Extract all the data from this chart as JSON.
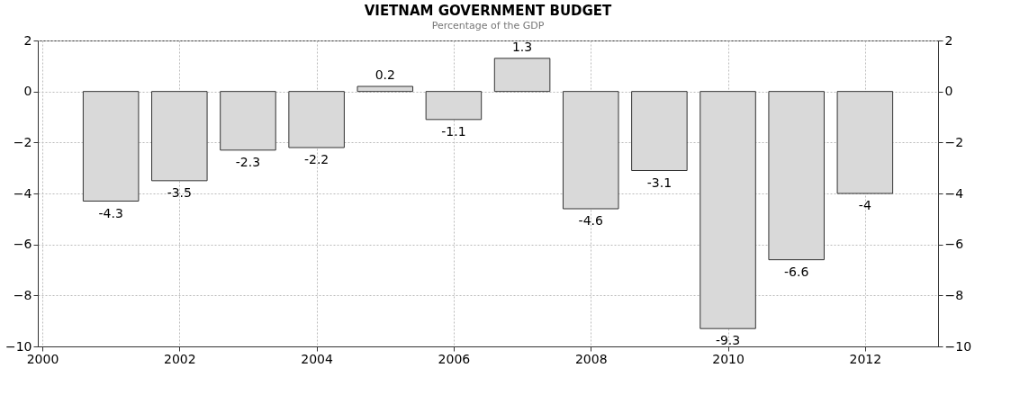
{
  "chart_data": {
    "type": "bar",
    "title": "VIETNAM GOVERNMENT BUDGET",
    "subtitle": "Percentage of the GDP",
    "x": [
      2001,
      2002,
      2003,
      2004,
      2005,
      2006,
      2007,
      2008,
      2009,
      2010,
      2011,
      2012
    ],
    "values": [
      -4.3,
      -3.5,
      -2.3,
      -2.2,
      0.2,
      -1.1,
      1.3,
      -4.6,
      -3.1,
      -9.3,
      -6.6,
      -4
    ],
    "color": "#d9d9d9",
    "xlim": [
      2000,
      2013
    ],
    "xticks": [
      2000,
      2002,
      2004,
      2006,
      2008,
      2010,
      2012
    ],
    "ylim": [
      -10,
      2
    ],
    "yticks": [
      -10,
      -8,
      -6,
      -4,
      -2,
      0,
      2
    ],
    "y2lim": [
      -10,
      2
    ],
    "y2ticks": [
      -10,
      -8,
      -6,
      -4,
      -2,
      0,
      2
    ],
    "grid": true,
    "data_labels": true
  }
}
